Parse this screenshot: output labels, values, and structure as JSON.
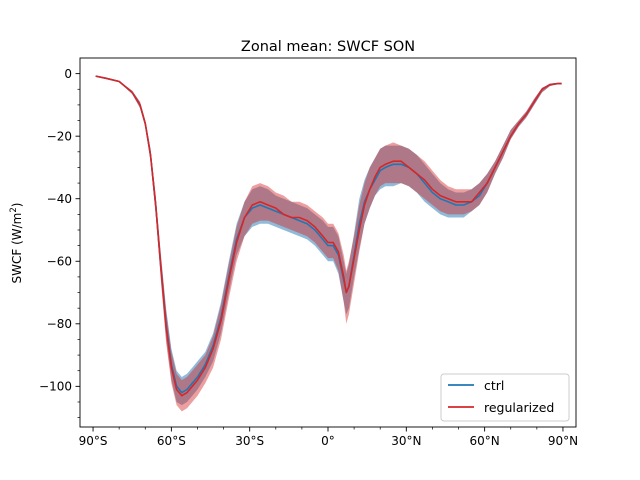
{
  "chart_data": {
    "type": "line",
    "title": "Zonal mean: SWCF SON",
    "xlabel": "",
    "ylabel": "SWCF (W/m",
    "ylabel_sup": "2",
    "ylabel_close": ")",
    "xlim": [
      -95,
      95
    ],
    "ylim": [
      -113,
      5
    ],
    "xticks": [
      -90,
      -60,
      -30,
      0,
      30,
      60,
      90
    ],
    "xtick_labels": [
      "90°S",
      "60°S",
      "30°S",
      "0°",
      "30°N",
      "60°N",
      "90°N"
    ],
    "yticks": [
      0,
      -20,
      -40,
      -60,
      -80,
      -100
    ],
    "ytick_labels": [
      "0",
      "−20",
      "−40",
      "−60",
      "−80",
      "−100"
    ],
    "legend_position": "lower-right",
    "x": [
      -89,
      -85,
      -80,
      -75,
      -72,
      -70,
      -68,
      -66,
      -64,
      -62,
      -60,
      -58,
      -56,
      -54,
      -52,
      -50,
      -47,
      -44,
      -41,
      -38,
      -35,
      -32,
      -29,
      -26,
      -23,
      -20,
      -17,
      -14,
      -11,
      -8,
      -5,
      -2,
      0,
      2,
      4,
      6,
      7,
      8,
      10,
      12,
      14,
      16,
      18,
      20,
      22,
      25,
      28,
      31,
      34,
      37,
      40,
      43,
      46,
      49,
      52,
      55,
      58,
      61,
      64,
      67,
      70,
      73,
      76,
      79,
      82,
      85,
      88,
      89.5
    ],
    "series": [
      {
        "name": "ctrl",
        "color": "#1f77b4",
        "values": [
          -0.8,
          -1.5,
          -2.5,
          -6,
          -10,
          -16,
          -26,
          -42,
          -62,
          -80,
          -93,
          -100,
          -102,
          -101,
          -99,
          -97,
          -93,
          -87,
          -78,
          -65,
          -53,
          -46,
          -43,
          -42,
          -43,
          -44,
          -45,
          -46,
          -47,
          -48,
          -50,
          -53,
          -55,
          -55,
          -58,
          -66,
          -70,
          -68,
          -58,
          -48,
          -41,
          -37,
          -34,
          -31,
          -30,
          -29,
          -29,
          -30,
          -32,
          -35,
          -38,
          -40,
          -41,
          -42,
          -42,
          -41,
          -39,
          -35,
          -30,
          -25,
          -20,
          -16,
          -13,
          -9,
          -5,
          -3.5,
          -3.2,
          -3.2
        ],
        "lower": [
          -1.0,
          -1.7,
          -2.7,
          -6.5,
          -11,
          -17,
          -28,
          -45,
          -66,
          -85,
          -98,
          -105,
          -106,
          -105,
          -103,
          -101,
          -97,
          -92,
          -83,
          -70,
          -58,
          -52,
          -49,
          -48,
          -48,
          -49,
          -50,
          -51,
          -52,
          -53,
          -55,
          -58,
          -60,
          -60,
          -64,
          -73,
          -77,
          -75,
          -65,
          -56,
          -48,
          -43,
          -39,
          -37,
          -36,
          -36,
          -35,
          -36,
          -38,
          -41,
          -43,
          -45,
          -46,
          -46,
          -46,
          -44,
          -42,
          -38,
          -32,
          -27,
          -21,
          -17,
          -14,
          -10,
          -6,
          -4,
          -3.4,
          -3.4
        ],
        "upper": [
          -0.6,
          -1.3,
          -2.3,
          -5.5,
          -9,
          -15,
          -24,
          -39,
          -58,
          -75,
          -88,
          -95,
          -97,
          -96,
          -94,
          -92,
          -89,
          -83,
          -73,
          -60,
          -48,
          -41,
          -37,
          -36,
          -37,
          -39,
          -40,
          -41,
          -42,
          -43,
          -45,
          -47,
          -49,
          -49,
          -52,
          -60,
          -64,
          -61,
          -51,
          -40,
          -34,
          -30,
          -27,
          -24,
          -23,
          -23,
          -23,
          -24,
          -26,
          -29,
          -32,
          -35,
          -37,
          -38,
          -38,
          -37,
          -35,
          -32,
          -28,
          -23,
          -18,
          -15,
          -12,
          -8,
          -4.5,
          -3.3,
          -3.0,
          -3.0
        ]
      },
      {
        "name": "regularized",
        "color": "#d62728",
        "values": [
          -0.8,
          -1.5,
          -2.5,
          -6,
          -10,
          -16,
          -26,
          -42,
          -62,
          -81,
          -94,
          -101,
          -103,
          -102,
          -100,
          -98,
          -94,
          -88,
          -79,
          -66,
          -54,
          -46,
          -42,
          -41,
          -42,
          -43,
          -45,
          -46,
          -46,
          -47,
          -49,
          -52,
          -54,
          -54,
          -57,
          -65,
          -70,
          -68,
          -59,
          -50,
          -42,
          -37,
          -33,
          -30,
          -29,
          -28,
          -28,
          -30,
          -32,
          -34,
          -37,
          -39,
          -40,
          -41,
          -41,
          -41,
          -38,
          -35,
          -30,
          -25,
          -20,
          -16,
          -13,
          -9,
          -5,
          -3.5,
          -3.2,
          -3.2
        ],
        "lower": [
          -1.0,
          -1.7,
          -2.7,
          -6.5,
          -11,
          -17,
          -28,
          -45,
          -66,
          -86,
          -99,
          -106,
          -108,
          -107,
          -105,
          -103,
          -99,
          -94,
          -85,
          -72,
          -60,
          -52,
          -48,
          -47,
          -47,
          -48,
          -49,
          -50,
          -51,
          -52,
          -54,
          -57,
          -59,
          -59,
          -63,
          -73,
          -80,
          -77,
          -67,
          -57,
          -48,
          -43,
          -39,
          -36,
          -35,
          -35,
          -35,
          -36,
          -38,
          -40,
          -42,
          -44,
          -45,
          -45,
          -45,
          -44,
          -42,
          -38,
          -32,
          -27,
          -21,
          -17,
          -14,
          -10,
          -6,
          -4,
          -3.4,
          -3.4
        ],
        "upper": [
          -0.6,
          -1.3,
          -2.3,
          -5.5,
          -9,
          -15,
          -24,
          -39,
          -58,
          -76,
          -89,
          -96,
          -98,
          -97,
          -95,
          -93,
          -90,
          -84,
          -74,
          -61,
          -49,
          -41,
          -36,
          -35,
          -36,
          -38,
          -39,
          -41,
          -41,
          -42,
          -44,
          -46,
          -48,
          -48,
          -51,
          -58,
          -63,
          -60,
          -52,
          -42,
          -35,
          -30,
          -27,
          -24,
          -23,
          -22,
          -23,
          -24,
          -26,
          -28,
          -31,
          -34,
          -36,
          -37,
          -37,
          -37,
          -35,
          -32,
          -28,
          -23,
          -18,
          -15,
          -12,
          -8,
          -4.5,
          -3.3,
          -3.0,
          -3.0
        ]
      }
    ]
  }
}
